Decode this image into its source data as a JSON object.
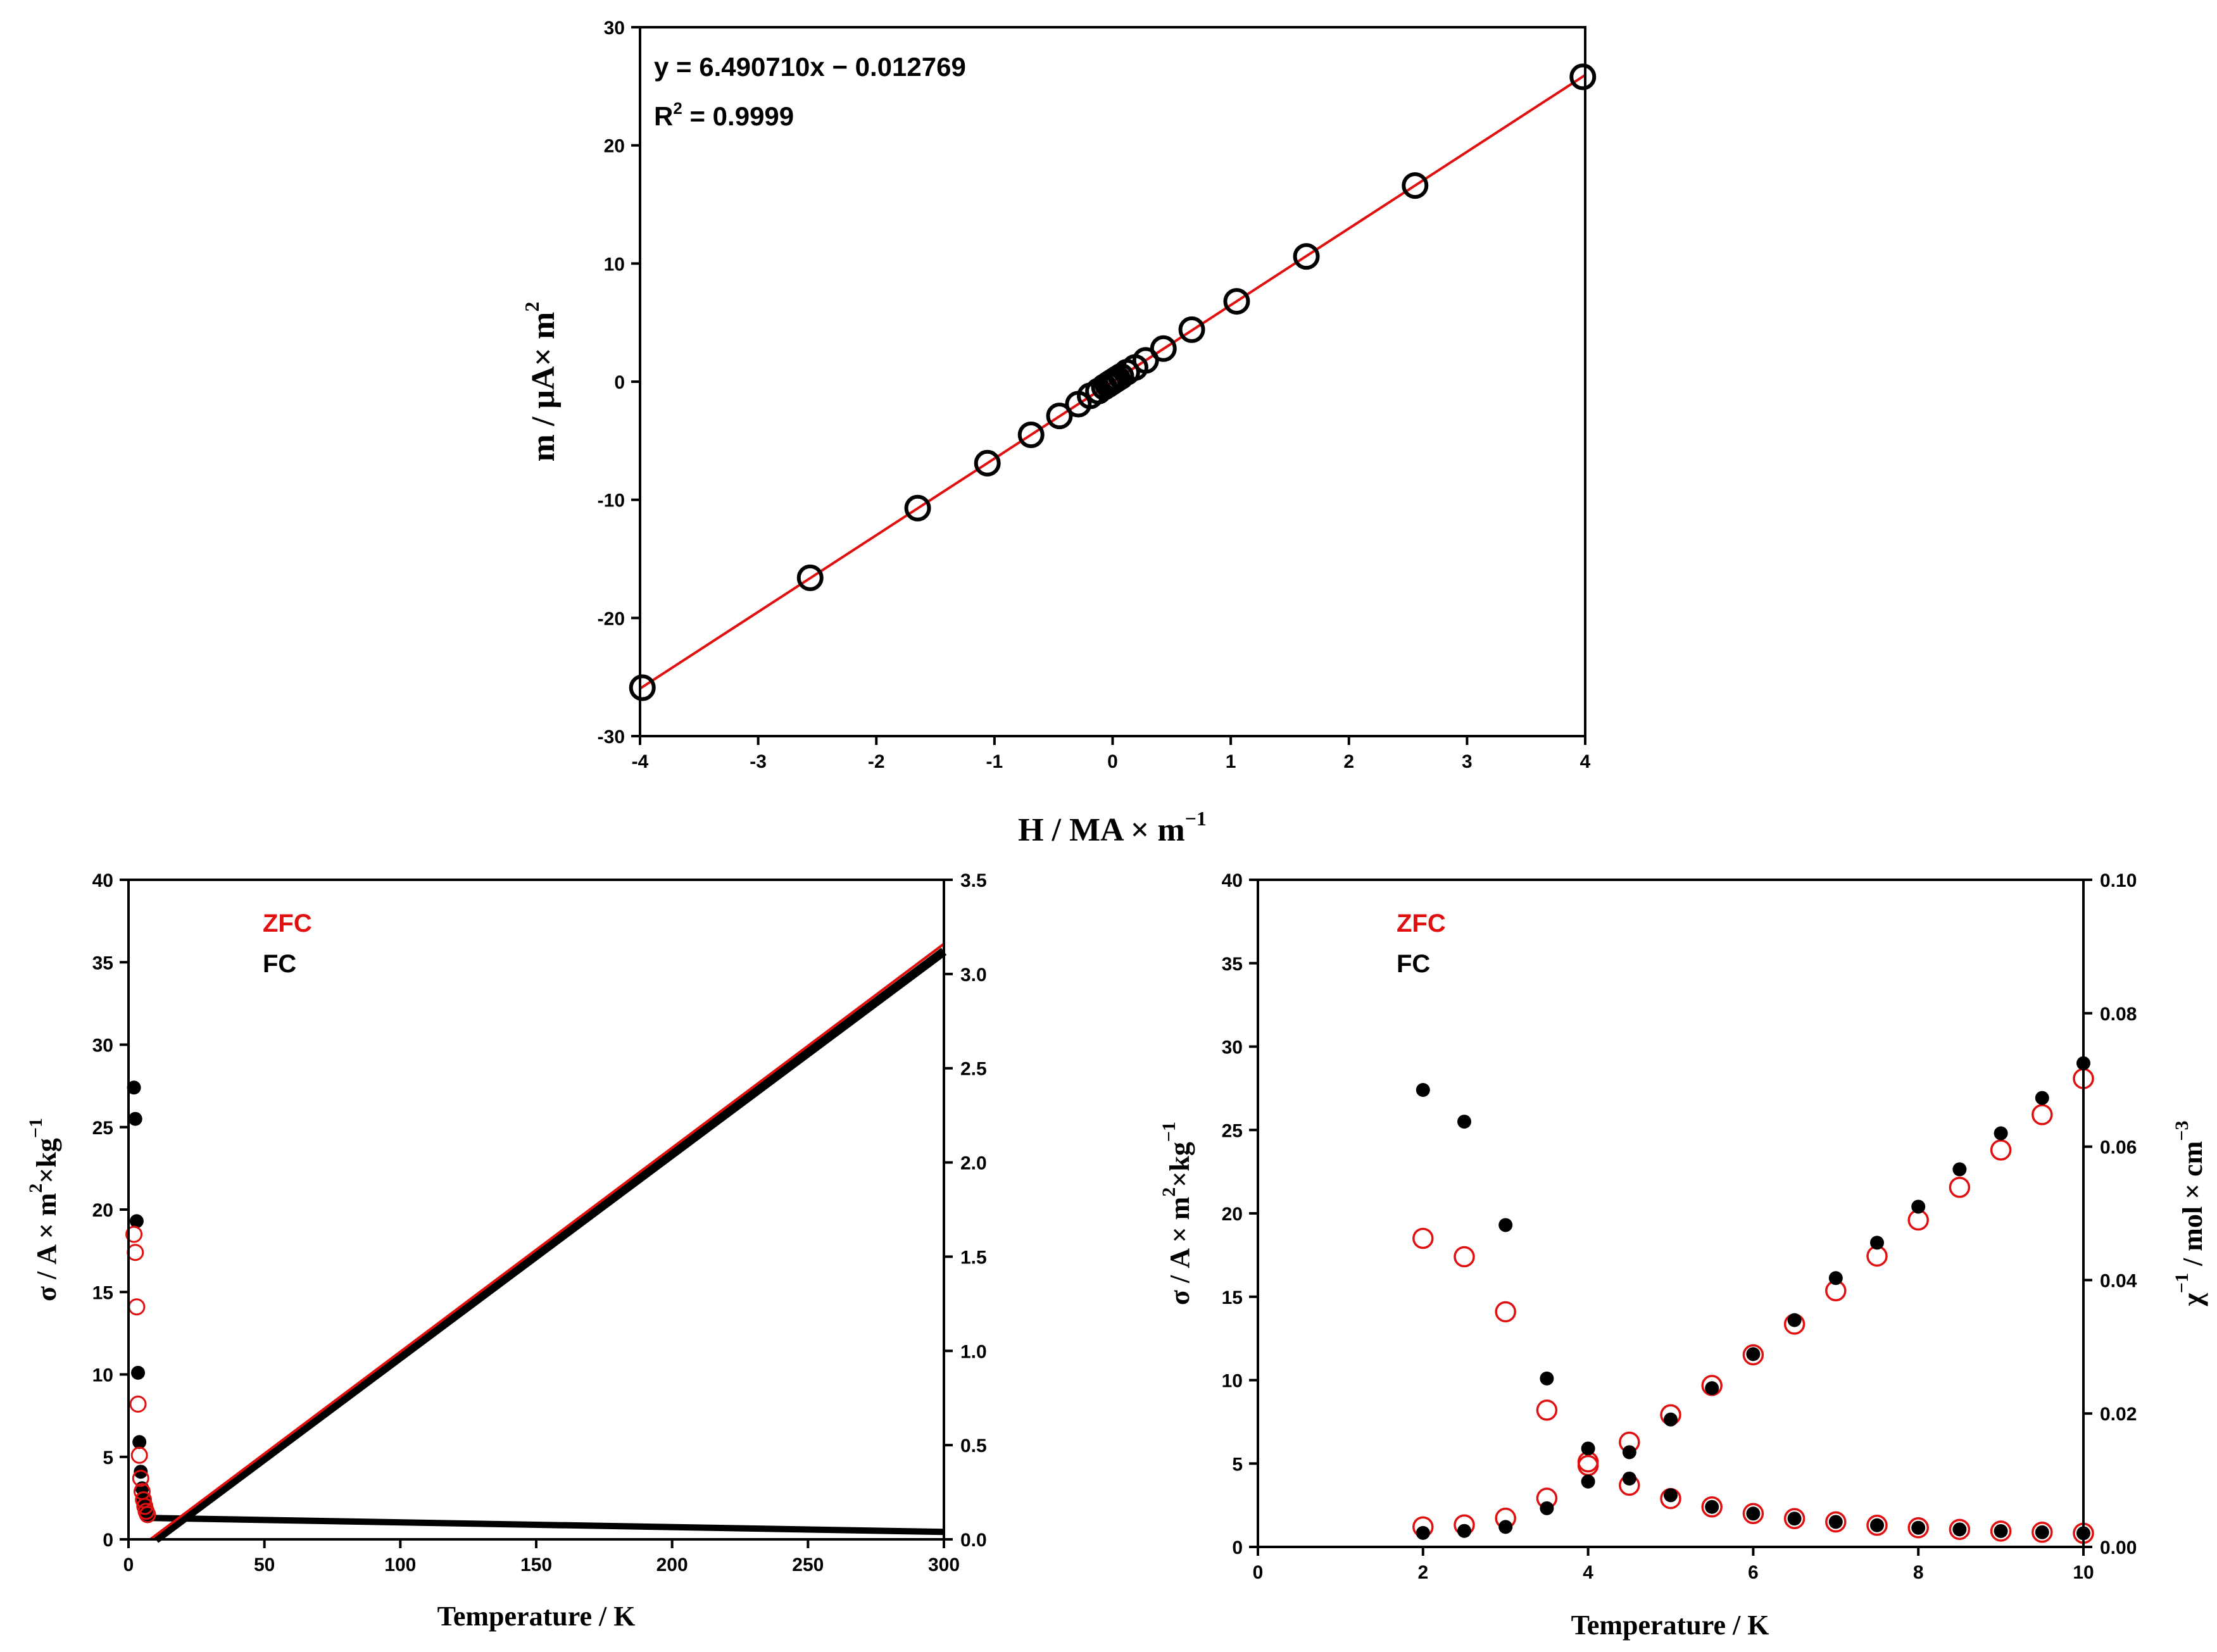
{
  "colors": {
    "zfc": "#e01010",
    "fc": "#000000",
    "fit_line": "#e01010"
  },
  "chart_data": [
    {
      "type": "scatter",
      "panel": "top",
      "xlabel": "H / MA × m",
      "xlabel_sup": "−1",
      "ylabel": "m / μA× m",
      "ylabel_sup": "2",
      "xlim": [
        -4,
        4
      ],
      "ylim": [
        -30,
        30
      ],
      "xticks": [
        "-4",
        "-3",
        "-2",
        "-1",
        "0",
        "1",
        "2",
        "3",
        "4"
      ],
      "yticks": [
        "-30",
        "-20",
        "-10",
        "0",
        "10",
        "20",
        "30"
      ],
      "fit_equation": "y = 6.490710x − 0.012769",
      "fit_r2_prefix": "R",
      "fit_r2_sup": "2",
      "fit_r2_value": " = 0.9999",
      "fit": {
        "slope": 6.49071,
        "intercept": -0.012769
      },
      "x": [
        -3.98,
        -2.56,
        -1.65,
        -1.06,
        -0.69,
        -0.45,
        -0.29,
        -0.19,
        -0.12,
        -0.07,
        -0.04,
        -0.02,
        0.0,
        0.02,
        0.04,
        0.07,
        0.12,
        0.19,
        0.28,
        0.43,
        0.67,
        1.05,
        1.64,
        2.56,
        3.98
      ],
      "y": [
        -25.9,
        -16.6,
        -10.7,
        -6.9,
        -4.5,
        -2.9,
        -1.9,
        -1.2,
        -0.8,
        -0.45,
        -0.26,
        -0.13,
        0.0,
        0.13,
        0.26,
        0.45,
        0.8,
        1.2,
        1.8,
        2.8,
        4.4,
        6.8,
        10.6,
        16.6,
        25.8
      ]
    },
    {
      "type": "scatter",
      "panel": "bottom-left",
      "xlabel": "Temperature / K",
      "ylabel_prefix": "σ / A × m",
      "ylabel_sup": "2",
      "ylabel_suffix": "×kg",
      "ylabel_sup2": "−1",
      "xlim": [
        0,
        300
      ],
      "ylim": [
        0,
        40
      ],
      "y2lim": [
        0,
        3.5
      ],
      "xticks": [
        "0",
        "50",
        "100",
        "150",
        "200",
        "250",
        "300"
      ],
      "yticks": [
        "0",
        "5",
        "10",
        "15",
        "20",
        "25",
        "30",
        "35",
        "40"
      ],
      "y2ticks": [
        "0.0",
        "0.5",
        "1.0",
        "1.5",
        "2.0",
        "2.5",
        "3.0",
        "3.5"
      ],
      "legend": [
        "ZFC",
        "FC"
      ],
      "series": [
        {
          "name": "ZFC σ",
          "marker": "open-circle",
          "color": "#e01010",
          "x": [
            2,
            2.5,
            3,
            3.5,
            4,
            4.5,
            5,
            5.5,
            6,
            6.5,
            7
          ],
          "y": [
            18.5,
            17.4,
            14.1,
            8.2,
            5.1,
            3.7,
            2.9,
            2.4,
            2.0,
            1.7,
            1.5
          ]
        },
        {
          "name": "FC σ",
          "marker": "filled-circle",
          "color": "#000000",
          "x": [
            2,
            2.5,
            3,
            3.5,
            4,
            4.5,
            5,
            5.5,
            6,
            6.5,
            7
          ],
          "y": [
            27.4,
            25.5,
            19.3,
            10.1,
            5.9,
            4.1,
            3.1,
            2.4,
            2.0,
            1.7,
            1.5
          ]
        },
        {
          "name": "σ tail",
          "color": "#000000",
          "x_range": [
            7,
            300
          ],
          "y_start": 1.3,
          "y_end": 0.45
        },
        {
          "name": "χ⁻¹ ZFC",
          "color": "#e01010",
          "y2_at_x": [
            [
              8,
              0.0
            ],
            [
              300,
              3.16
            ]
          ]
        },
        {
          "name": "χ⁻¹ FC",
          "color": "#000000",
          "y2_at_x": [
            [
              10,
              0.0
            ],
            [
              300,
              3.12
            ]
          ]
        }
      ]
    },
    {
      "type": "scatter",
      "panel": "bottom-right",
      "xlabel": "Temperature / K",
      "ylabel_prefix": "σ / A × m",
      "ylabel_sup": "2",
      "ylabel_suffix": "×kg",
      "ylabel_sup2": "−1",
      "y2label_prefix": "χ",
      "y2label_sup": "−1",
      "y2label_mid": " / mol × cm",
      "y2label_sup2": "−3",
      "xlim": [
        0,
        10
      ],
      "ylim": [
        0,
        40
      ],
      "y2lim": [
        0,
        0.1
      ],
      "xticks": [
        "0",
        "2",
        "4",
        "6",
        "8",
        "10"
      ],
      "yticks": [
        "0",
        "5",
        "10",
        "15",
        "20",
        "25",
        "30",
        "35",
        "40"
      ],
      "y2ticks": [
        "0.00",
        "0.02",
        "0.04",
        "0.06",
        "0.08",
        "0.10"
      ],
      "legend": [
        "ZFC",
        "FC"
      ],
      "series": [
        {
          "name": "ZFC σ",
          "marker": "open-circle",
          "color": "#e01010",
          "axis": "y",
          "x": [
            2,
            2.5,
            3,
            3.5,
            4,
            4.5,
            5,
            5.5,
            6,
            6.5,
            7,
            7.5,
            8,
            8.5,
            9,
            9.5,
            10
          ],
          "y": [
            18.5,
            17.4,
            14.1,
            8.2,
            5.1,
            3.7,
            2.9,
            2.4,
            2.0,
            1.7,
            1.5,
            1.3,
            1.15,
            1.05,
            0.95,
            0.88,
            0.82
          ]
        },
        {
          "name": "FC σ",
          "marker": "filled-circle",
          "color": "#000000",
          "axis": "y",
          "x": [
            2,
            2.5,
            3,
            3.5,
            4,
            4.5,
            5,
            5.5,
            6,
            6.5,
            7,
            7.5,
            8,
            8.5,
            9,
            9.5,
            10
          ],
          "y": [
            27.4,
            25.5,
            19.3,
            10.1,
            5.9,
            4.1,
            3.1,
            2.4,
            2.0,
            1.7,
            1.5,
            1.3,
            1.15,
            1.05,
            0.95,
            0.88,
            0.82
          ]
        },
        {
          "name": "ZFC χ⁻¹",
          "marker": "open-circle",
          "color": "#e01010",
          "axis": "y2",
          "x": [
            2,
            2.5,
            3,
            3.5,
            4,
            4.5,
            5,
            5.5,
            6,
            6.5,
            7,
            7.5,
            8,
            8.5,
            9,
            9.5,
            10
          ],
          "y": [
            0.003,
            0.0033,
            0.0043,
            0.0073,
            0.0122,
            0.0157,
            0.0198,
            0.0242,
            0.0288,
            0.0334,
            0.0384,
            0.0436,
            0.049,
            0.0539,
            0.0595,
            0.0648,
            0.0702
          ]
        },
        {
          "name": "FC χ⁻¹",
          "marker": "filled-circle",
          "color": "#000000",
          "axis": "y2",
          "x": [
            2,
            2.5,
            3,
            3.5,
            4,
            4.5,
            5,
            5.5,
            6,
            6.5,
            7,
            7.5,
            8,
            8.5,
            9,
            9.5,
            10
          ],
          "y": [
            0.0021,
            0.0024,
            0.003,
            0.0058,
            0.0098,
            0.0142,
            0.0191,
            0.0238,
            0.0289,
            0.034,
            0.0403,
            0.0456,
            0.051,
            0.0566,
            0.062,
            0.0673,
            0.0725
          ]
        }
      ]
    }
  ]
}
